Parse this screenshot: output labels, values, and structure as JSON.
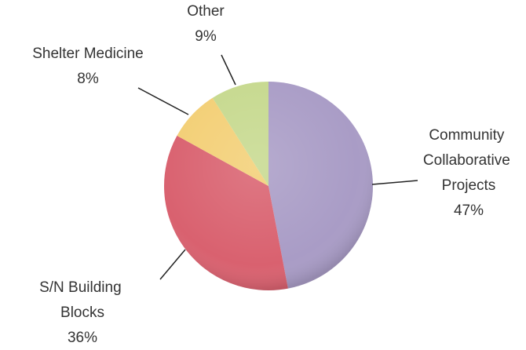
{
  "chart_data": {
    "type": "pie",
    "categories": [
      "Community Collaborative Projects",
      "S/N Building Blocks",
      "Shelter Medicine",
      "Other"
    ],
    "values": [
      47,
      36,
      8,
      9
    ],
    "value_labels": [
      "47%",
      "36%",
      "8%",
      "9%"
    ],
    "colors": [
      "#a99cc6",
      "#d9616f",
      "#f3cf75",
      "#c6d98e"
    ]
  }
}
